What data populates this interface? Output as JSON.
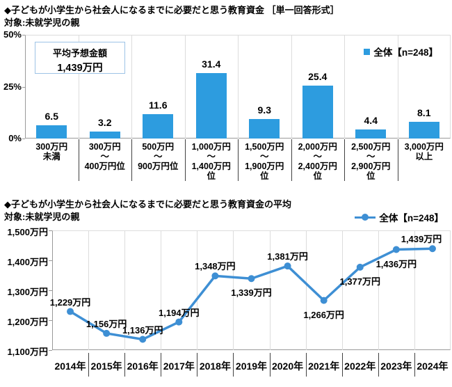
{
  "colors": {
    "bar": "#2D9CDF",
    "line": "#3E8FD4",
    "box_border": "#9DC3E6",
    "grid": "#DCDCDC",
    "axis": "#999999",
    "separator": "#404040"
  },
  "chart_data": [
    {
      "type": "bar",
      "title": "◆子どもが小学生から社会人になるまでに必要だと思う教育資金 ［単一回答形式］",
      "target": "対象:未就学児の親",
      "legend": "全体【n=248】",
      "average_box": {
        "line1": "平均予想金額",
        "line2": "1,439万円"
      },
      "categories": [
        [
          "300万円",
          "未満"
        ],
        [
          "300万円",
          "～",
          "400万円位"
        ],
        [
          "500万円",
          "～",
          "900万円位"
        ],
        [
          "1,000万円",
          "～",
          "1,400万円",
          "位"
        ],
        [
          "1,500万円",
          "～",
          "1,900万円",
          "位"
        ],
        [
          "2,000万円",
          "～",
          "2,400万円",
          "位"
        ],
        [
          "2,500万円",
          "～",
          "2,900万円",
          "位"
        ],
        [
          "3,000万円",
          "以上"
        ]
      ],
      "values": [
        6.5,
        3.2,
        11.6,
        31.4,
        9.3,
        25.4,
        4.4,
        8.1
      ],
      "ylabel": "%",
      "ylim": [
        0,
        50
      ],
      "grid": "vertical",
      "legend_position": "top-right",
      "y_ticks": [
        {
          "v": 50,
          "label": "50%"
        },
        {
          "v": 25,
          "label": "25%"
        },
        {
          "v": 0,
          "label": "0%"
        }
      ]
    },
    {
      "type": "line",
      "title": "◆子どもが小学生から社会人になるまでに必要だと思う教育資金の平均",
      "target": "対象:未就学児の親",
      "legend": "全体【n=248】",
      "x": [
        "2014年",
        "2015年",
        "2016年",
        "2017年",
        "2018年",
        "2019年",
        "2020年",
        "2021年",
        "2022年",
        "2023年",
        "2024年"
      ],
      "values": [
        1229,
        1156,
        1136,
        1194,
        1348,
        1339,
        1381,
        1266,
        1377,
        1436,
        1439
      ],
      "point_labels": [
        "1,229万円",
        "1,156万円",
        "1,136万円",
        "1,194万円",
        "1,348万円",
        "1,339万円",
        "1,381万円",
        "1,266万円",
        "1,377万円",
        "1,436万円",
        "1,439万円"
      ],
      "label_side": [
        "above",
        "above",
        "above",
        "above",
        "above",
        "below",
        "above",
        "below",
        "below",
        "below",
        "above"
      ],
      "ylim": [
        1100,
        1500
      ],
      "grid": "vertical",
      "legend_position": "top-right",
      "y_ticks": [
        {
          "v": 1500,
          "label": "1,500万円"
        },
        {
          "v": 1400,
          "label": "1,400万円"
        },
        {
          "v": 1300,
          "label": "1,300万円"
        },
        {
          "v": 1200,
          "label": "1,200万円"
        },
        {
          "v": 1100,
          "label": "1,100万円"
        }
      ]
    }
  ]
}
